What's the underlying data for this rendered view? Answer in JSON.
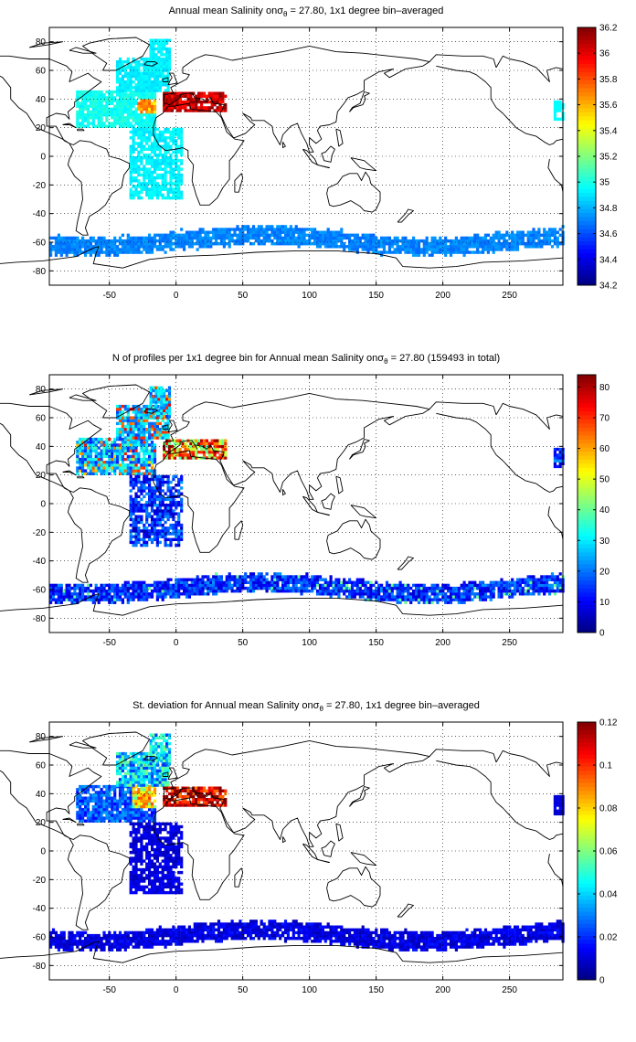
{
  "panels": [
    {
      "title_prefix": "Annual mean Salinity on",
      "title_sigma": "σ",
      "title_sub": "θ",
      "title_suffix": " = 27.80, 1x1 degree bin–averaged",
      "colorbar_ticks": [
        "34.2",
        "34.4",
        "34.6",
        "34.8",
        "35",
        "35.2",
        "35.4",
        "35.6",
        "35.8",
        "36",
        "36.2"
      ],
      "colorbar_range": [
        34.2,
        36.2
      ],
      "field": "salinity"
    },
    {
      "title_prefix": "N of profiles per 1x1 degree bin for Annual mean Salinity on",
      "title_sigma": "σ",
      "title_sub": "θ",
      "title_suffix": " = 27.80 (159493 in total)",
      "colorbar_ticks": [
        "0",
        "10",
        "20",
        "30",
        "40",
        "50",
        "60",
        "70",
        "80"
      ],
      "colorbar_range": [
        0,
        84
      ],
      "field": "count"
    },
    {
      "title_prefix": "St. deviation for Annual mean Salinity on",
      "title_sigma": "σ",
      "title_sub": "θ",
      "title_suffix": " = 27.80, 1x1 degree bin–averaged",
      "colorbar_ticks": [
        "0",
        "0.02",
        "0.04",
        "0.06",
        "0.08",
        "0.1",
        "0.12"
      ],
      "colorbar_range": [
        0,
        0.12
      ],
      "field": "stdev"
    }
  ],
  "axes": {
    "x_ticks": [
      "-50",
      "0",
      "50",
      "100",
      "150",
      "200",
      "250"
    ],
    "y_ticks": [
      "80",
      "60",
      "40",
      "20",
      "0",
      "-20",
      "-40",
      "-60",
      "-80"
    ],
    "x_range": [
      -95,
      290
    ],
    "y_range": [
      -90,
      90
    ],
    "grid": "dotted"
  },
  "colormap": "jet"
}
